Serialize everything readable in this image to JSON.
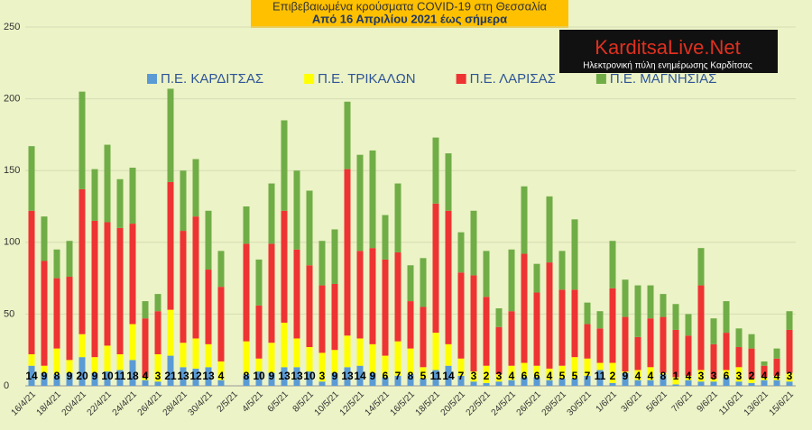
{
  "chart_data": {
    "type": "stacked_bar",
    "title": "Επιβεβαιωμένα κρούσματα COVID-19 στη Θεσσαλία",
    "subtitle": "Από 16 Απριλίου 2021 έως σήμερα",
    "logo": "KarditsaLive.Net",
    "logo_tagline": "Ηλεκτρονική πύλη ενημέρωσης Καρδίτσας",
    "categories": [
      "16/4/21",
      null,
      "18/4/21",
      null,
      "20/4/21",
      null,
      "22/4/21",
      null,
      "24/4/21",
      null,
      "26/4/21",
      null,
      "28/4/21",
      null,
      "30/4/21",
      null,
      "2/5/21",
      null,
      "4/5/21",
      null,
      "6/5/21",
      null,
      "8/5/21",
      null,
      "10/5/21",
      null,
      "12/5/21",
      null,
      "14/5/21",
      null,
      "16/5/21",
      null,
      "18/5/21",
      null,
      "20/5/21",
      null,
      "22/5/21",
      null,
      "24/5/21",
      null,
      "26/5/21",
      null,
      "28/5/21",
      null,
      "30/5/21",
      null,
      "1/6/21",
      null,
      "3/6/21",
      null,
      "5/6/21",
      null,
      "7/6/21",
      null,
      "9/6/21",
      null,
      "11/6/21",
      null,
      "13/6/21",
      null,
      "15/6/21"
    ],
    "series": [
      {
        "name": "Π.Ε. ΚΑΡΔΙΤΣΑΣ",
        "color": "#5b9bd5",
        "values": [
          14,
          9,
          8,
          9,
          20,
          9,
          10,
          11,
          18,
          4,
          3,
          21,
          13,
          12,
          13,
          4,
          null,
          8,
          10,
          9,
          13,
          13,
          10,
          3,
          9,
          13,
          14,
          9,
          6,
          7,
          8,
          5,
          11,
          14,
          7,
          3,
          2,
          3,
          4,
          6,
          6,
          4,
          5,
          5,
          7,
          11,
          2,
          9,
          4,
          4,
          8,
          1,
          4,
          3,
          3,
          6,
          3,
          2,
          4,
          4,
          3
        ]
      },
      {
        "name": "Π.Ε. ΤΡΙΚΑΛΩΝ",
        "color": "#ffff00",
        "values": [
          8,
          5,
          18,
          9,
          16,
          11,
          18,
          11,
          25,
          2,
          19,
          32,
          17,
          21,
          16,
          13,
          null,
          23,
          9,
          21,
          31,
          20,
          17,
          20,
          16,
          22,
          19,
          20,
          15,
          24,
          18,
          8,
          26,
          15,
          12,
          7,
          12,
          5,
          10,
          10,
          8,
          8,
          9,
          15,
          12,
          5,
          14,
          1,
          7,
          9,
          1,
          5,
          3,
          8,
          2,
          5,
          10,
          3,
          2,
          3,
          6
        ]
      },
      {
        "name": "Π.Ε. ΛΑΡΙΣΑΣ",
        "color": "#ee3333",
        "values": [
          100,
          73,
          49,
          58,
          101,
          95,
          86,
          88,
          70,
          41,
          30,
          89,
          78,
          85,
          52,
          52,
          null,
          68,
          37,
          69,
          78,
          62,
          57,
          47,
          46,
          116,
          61,
          67,
          67,
          62,
          33,
          42,
          90,
          93,
          60,
          67,
          48,
          33,
          38,
          76,
          51,
          74,
          53,
          47,
          24,
          24,
          52,
          38,
          23,
          34,
          39,
          33,
          28,
          59,
          24,
          26,
          14,
          21,
          8,
          12,
          30
        ]
      },
      {
        "name": "Π.Ε. ΜΑΓΝΗΣΙΑΣ",
        "color": "#70ad47",
        "values": [
          45,
          31,
          20,
          25,
          68,
          36,
          54,
          34,
          39,
          12,
          12,
          65,
          42,
          40,
          41,
          25,
          null,
          26,
          32,
          42,
          63,
          55,
          52,
          31,
          38,
          47,
          67,
          68,
          31,
          48,
          25,
          34,
          46,
          40,
          28,
          45,
          32,
          13,
          43,
          47,
          20,
          46,
          27,
          49,
          15,
          12,
          33,
          26,
          36,
          23,
          16,
          18,
          15,
          26,
          18,
          22,
          13,
          10,
          3,
          7,
          13
        ]
      }
    ],
    "ylim": [
      0,
      250
    ],
    "yticks": [
      0,
      50,
      100,
      150,
      200,
      250
    ],
    "grid": true,
    "value_labels_series": 0
  }
}
